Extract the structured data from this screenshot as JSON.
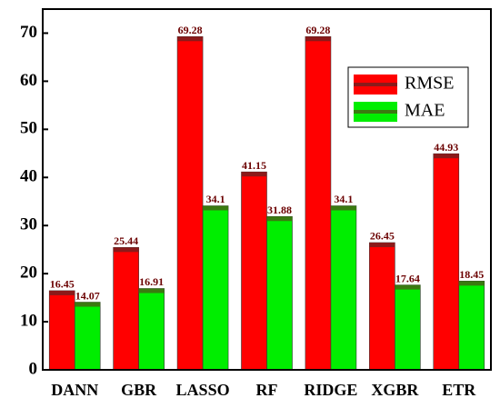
{
  "chart_data": {
    "type": "bar",
    "categories": [
      "DANN",
      "GBR",
      "LASSO",
      "RF",
      "RIDGE",
      "XGBR",
      "ETR"
    ],
    "series": [
      {
        "name": "RMSE",
        "color": "#ff0000",
        "values": [
          16.45,
          25.44,
          69.28,
          41.15,
          69.28,
          26.45,
          44.93
        ]
      },
      {
        "name": "MAE",
        "color": "#00ee00",
        "values": [
          14.07,
          16.91,
          34.1,
          31.88,
          34.1,
          17.64,
          18.45
        ]
      }
    ],
    "ylim": [
      0,
      75
    ],
    "yticks": [
      0,
      10,
      20,
      30,
      40,
      50,
      60,
      70
    ],
    "legend": "upper-right"
  }
}
